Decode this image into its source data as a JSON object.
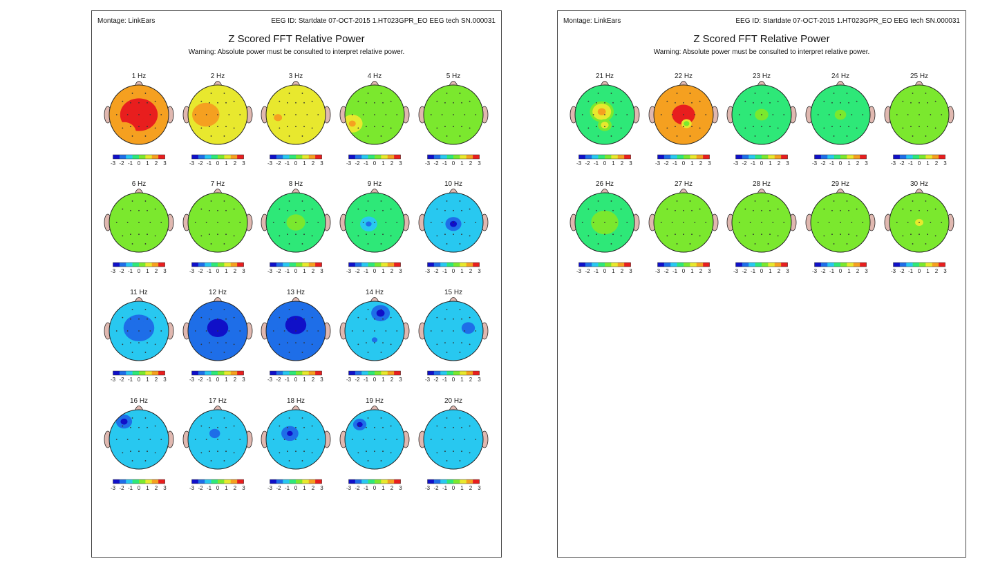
{
  "pages": [
    {
      "montage": "Montage:  LinkEars",
      "eeg_id": "EEG ID:  Startdate 07-OCT-2015 1.HT023GPR_EO EEG tech SN.000031",
      "title": "Z Scored FFT Relative Power",
      "warning": "Warning:  Absolute power must be consulted to interpret relative power."
    },
    {
      "montage": "Montage:  LinkEars",
      "eeg_id": "EEG ID:  Startdate 07-OCT-2015 1.HT023GPR_EO EEG tech SN.000031",
      "title": "Z Scored FFT Relative Power",
      "warning": "Warning:  Absolute power must be consulted to interpret relative power."
    }
  ],
  "colors": {
    "z_scale": [
      "#1010c8",
      "#1e6ee8",
      "#28c8f0",
      "#2ee878",
      "#7be82e",
      "#e8e82e",
      "#f5a020",
      "#e81e1e"
    ],
    "head_outline": "#222222",
    "ear": "#e0b8b0"
  },
  "chart_data": [
    {
      "type": "heatmap",
      "title": "Z Scored FFT Relative Power",
      "colorbar_ticks": [
        "-3",
        "-2",
        "-1",
        "0",
        "1",
        "2",
        "3"
      ],
      "colorbar_range": [
        -3,
        3
      ],
      "maps": [
        {
          "label": "1 Hz",
          "z": 2.5,
          "blobs": [
            {
              "cx": 0.0,
              "cy": 0.0,
              "r": 0.55,
              "z": 2.9
            },
            {
              "cx": -0.5,
              "cy": 0.6,
              "r": 0.35,
              "z": 1.8
            }
          ]
        },
        {
          "label": "2 Hz",
          "z": 1.7,
          "blobs": [
            {
              "cx": -0.4,
              "cy": 0.0,
              "r": 0.4,
              "z": 1.9
            }
          ]
        },
        {
          "label": "3 Hz",
          "z": 1.3,
          "blobs": [
            {
              "cx": -0.6,
              "cy": 0.1,
              "r": 0.35,
              "z": 1.8
            }
          ]
        },
        {
          "label": "4 Hz",
          "z": 0.6,
          "blobs": [
            {
              "cx": -0.75,
              "cy": 0.3,
              "r": 0.3,
              "z": 1.8
            }
          ]
        },
        {
          "label": "5 Hz",
          "z": 0.5,
          "blobs": [
            {
              "cx": 0.1,
              "cy": 0.0,
              "r": 0.3,
              "z": 0.2
            }
          ]
        },
        {
          "label": "6 Hz",
          "z": 0.4,
          "blobs": [
            {
              "cx": 0.0,
              "cy": 0.0,
              "r": 0.3,
              "z": 0.6
            }
          ]
        },
        {
          "label": "7 Hz",
          "z": 0.3,
          "blobs": [
            {
              "cx": 0.0,
              "cy": 0.3,
              "r": 0.35,
              "z": 0.1
            }
          ]
        },
        {
          "label": "8 Hz",
          "z": -0.2,
          "blobs": [
            {
              "cx": 0.0,
              "cy": 0.0,
              "r": 0.35,
              "z": 0.2
            }
          ]
        },
        {
          "label": "9 Hz",
          "z": -0.8,
          "blobs": [
            {
              "cx": -0.2,
              "cy": 0.05,
              "r": 0.25,
              "z": -2.0
            }
          ]
        },
        {
          "label": "10 Hz",
          "z": -0.9,
          "blobs": [
            {
              "cx": 0.0,
              "cy": 0.05,
              "r": 0.3,
              "z": -2.6
            }
          ]
        },
        {
          "label": "11 Hz",
          "z": -1.6,
          "blobs": [
            {
              "cx": 0.0,
              "cy": -0.1,
              "r": 0.45,
              "z": -2.3
            }
          ]
        },
        {
          "label": "12 Hz",
          "z": -2.2,
          "blobs": [
            {
              "cx": 0.0,
              "cy": -0.1,
              "r": 0.55,
              "z": -2.8
            }
          ]
        },
        {
          "label": "13 Hz",
          "z": -2.2,
          "blobs": [
            {
              "cx": 0.0,
              "cy": -0.2,
              "r": 0.55,
              "z": -2.9
            }
          ]
        },
        {
          "label": "14 Hz",
          "z": -1.3,
          "blobs": [
            {
              "cx": 0.2,
              "cy": -0.6,
              "r": 0.35,
              "z": -2.6
            },
            {
              "cx": 0.0,
              "cy": 0.3,
              "r": 0.15,
              "z": -2.0
            }
          ]
        },
        {
          "label": "15 Hz",
          "z": -1.4,
          "blobs": [
            {
              "cx": 0.5,
              "cy": -0.1,
              "r": 0.25,
              "z": -2.4
            }
          ]
        },
        {
          "label": "16 Hz",
          "z": -1.2,
          "blobs": [
            {
              "cx": -0.5,
              "cy": -0.6,
              "r": 0.3,
              "z": -2.6
            }
          ]
        },
        {
          "label": "17 Hz",
          "z": -1.3,
          "blobs": [
            {
              "cx": -0.1,
              "cy": -0.2,
              "r": 0.2,
              "z": -2.4
            }
          ]
        },
        {
          "label": "18 Hz",
          "z": -1.5,
          "blobs": [
            {
              "cx": -0.2,
              "cy": -0.2,
              "r": 0.25,
              "z": -2.7
            }
          ]
        },
        {
          "label": "19 Hz",
          "z": -1.3,
          "blobs": [
            {
              "cx": -0.5,
              "cy": -0.5,
              "r": 0.25,
              "z": -2.8
            }
          ]
        },
        {
          "label": "20 Hz",
          "z": -1.0,
          "blobs": [
            {
              "cx": 0.4,
              "cy": -0.4,
              "r": 0.2,
              "z": -1.6
            }
          ]
        },
        {
          "label": "21 Hz",
          "z": -0.3,
          "blobs": [
            {
              "cx": -0.1,
              "cy": -0.1,
              "r": 0.35,
              "z": 2.3
            },
            {
              "cx": 0.0,
              "cy": 0.35,
              "r": 0.2,
              "z": 1.4
            }
          ]
        },
        {
          "label": "22 Hz",
          "z": 1.8,
          "blobs": [
            {
              "cx": 0.0,
              "cy": 0.0,
              "r": 0.6,
              "z": 2.9
            },
            {
              "cx": 0.1,
              "cy": 0.3,
              "r": 0.15,
              "z": 0.3
            }
          ]
        },
        {
          "label": "23 Hz",
          "z": -0.4,
          "blobs": [
            {
              "cx": 0.0,
              "cy": 0.0,
              "r": 0.35,
              "z": 0.2
            }
          ]
        },
        {
          "label": "24 Hz",
          "z": -0.3,
          "blobs": [
            {
              "cx": 0.0,
              "cy": 0.0,
              "r": 0.3,
              "z": 0.2
            }
          ]
        },
        {
          "label": "25 Hz",
          "z": 0.0,
          "blobs": [
            {
              "cx": 0.0,
              "cy": 0.0,
              "r": 0.35,
              "z": 0.4
            }
          ]
        },
        {
          "label": "26 Hz",
          "z": -0.1,
          "blobs": [
            {
              "cx": 0.0,
              "cy": 0.0,
              "r": 0.4,
              "z": 0.4
            }
          ]
        },
        {
          "label": "27 Hz",
          "z": 0.2,
          "blobs": [
            {
              "cx": 0.0,
              "cy": 0.0,
              "r": 0.4,
              "z": 0.5
            }
          ]
        },
        {
          "label": "28 Hz",
          "z": 0.3,
          "blobs": [
            {
              "cx": 0.0,
              "cy": 0.0,
              "r": 0.45,
              "z": 0.5
            }
          ]
        },
        {
          "label": "29 Hz",
          "z": 0.1,
          "blobs": [
            {
              "cx": 0.0,
              "cy": 0.0,
              "r": 0.4,
              "z": 0.4
            }
          ]
        },
        {
          "label": "30 Hz",
          "z": 0.2,
          "blobs": [
            {
              "cx": 0.0,
              "cy": 0.0,
              "r": 0.35,
              "z": 1.0
            }
          ]
        }
      ]
    }
  ]
}
